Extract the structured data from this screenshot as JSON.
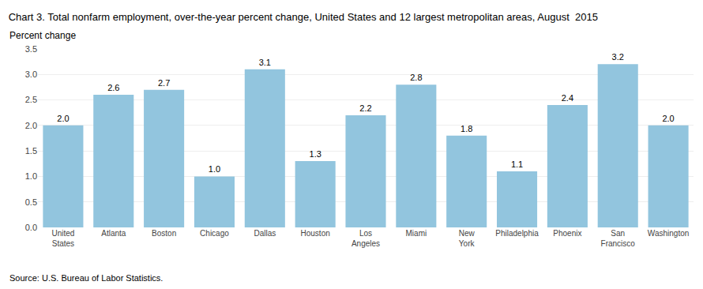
{
  "chart_data": {
    "type": "bar",
    "title": "Chart 3. Total nonfarm employment, over-the-year percent change, United States and 12 largest metropolitan areas, August  2015",
    "ylabel": "Percent change",
    "source": "Source: U.S. Bureau of Labor Statistics.",
    "categories": [
      "United\nStates",
      "Atlanta",
      "Boston",
      "Chicago",
      "Dallas",
      "Houston",
      "Los\nAngeles",
      "Miami",
      "New\nYork",
      "Philadelphia",
      "Phoenix",
      "San\nFrancisco",
      "Washington"
    ],
    "values": [
      2.0,
      2.6,
      2.7,
      1.0,
      3.1,
      1.3,
      2.2,
      2.8,
      1.8,
      1.1,
      2.4,
      3.2,
      2.0
    ],
    "value_labels": [
      "2.0",
      "2.6",
      "2.7",
      "1.0",
      "3.1",
      "1.3",
      "2.2",
      "2.8",
      "1.8",
      "1.1",
      "2.4",
      "3.2",
      "2.0"
    ],
    "data_labels": true,
    "color": "#92C5DE",
    "ylim": [
      0,
      3.5
    ],
    "yticks": [
      {
        "value": 0,
        "label": "0.0"
      },
      0.5,
      {
        "value": 1,
        "label": "1.0"
      },
      1.5,
      {
        "value": 2,
        "label": "2.0"
      },
      2.5,
      {
        "value": 3,
        "label": "3.0"
      },
      3.5
    ],
    "grid": true
  }
}
